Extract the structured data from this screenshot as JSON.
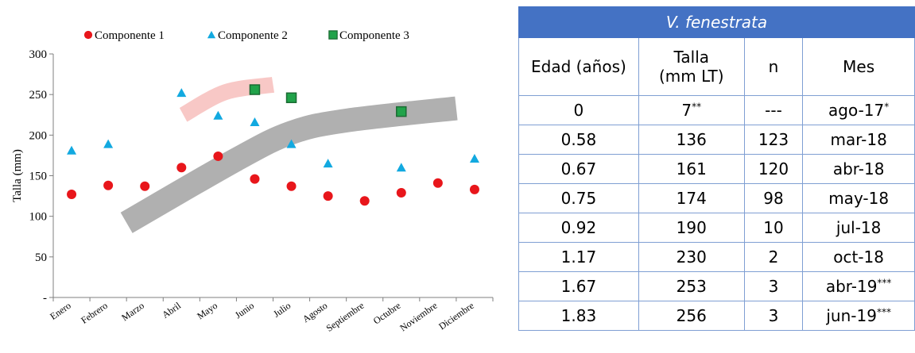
{
  "chart_data": {
    "type": "scatter",
    "xlabel": "",
    "ylabel": "Talla (mm)",
    "ylim": [
      0,
      300
    ],
    "yticks": [
      {
        "v": 0,
        "label": "-"
      },
      {
        "v": 50,
        "label": "50"
      },
      {
        "v": 100,
        "label": "100"
      },
      {
        "v": 150,
        "label": "150"
      },
      {
        "v": 200,
        "label": "200"
      },
      {
        "v": 250,
        "label": "250"
      },
      {
        "v": 300,
        "label": "300"
      }
    ],
    "categories": [
      "Enero",
      "Febrero",
      "Marzo",
      "Abril",
      "Mayo",
      "Junio",
      "Julio",
      "Agosto",
      "Septiembre",
      "Octubre",
      "Noviembre",
      "Diciembre"
    ],
    "legend_position": "top",
    "series": [
      {
        "name": "Componente 1",
        "marker": "circle",
        "color": "#e8161b",
        "values": [
          127,
          138,
          137,
          160,
          174,
          146,
          137,
          125,
          119,
          129,
          141,
          133
        ]
      },
      {
        "name": "Componente 2",
        "marker": "triangle",
        "color": "#12a9e0",
        "values": [
          181,
          189,
          null,
          252,
          224,
          216,
          189,
          165,
          null,
          160,
          null,
          171
        ]
      },
      {
        "name": "Componente 3",
        "marker": "square",
        "color": "#21a34a",
        "values": [
          null,
          null,
          null,
          null,
          null,
          256,
          246,
          null,
          null,
          229,
          null,
          null
        ]
      }
    ],
    "bands": [
      {
        "color": "#b0b0b0",
        "points": [
          [
            1.5,
            92
          ],
          [
            4.5,
            170
          ],
          [
            6,
            203
          ],
          [
            7.5,
            218
          ],
          [
            10.5,
            233
          ]
        ]
      },
      {
        "color": "#f8c8c6",
        "points": [
          [
            3.05,
            225
          ],
          [
            4.2,
            253
          ],
          [
            5.5,
            262
          ]
        ]
      }
    ]
  },
  "table": {
    "title": "V. fenestrata",
    "headers": [
      "Edad (años)",
      "Talla (mm LT)",
      "n",
      "Mes"
    ],
    "rows": [
      {
        "edad": "0",
        "talla": "7",
        "talla_sup": "**",
        "n": "---",
        "mes": "ago-17",
        "mes_sup": "*"
      },
      {
        "edad": "0.58",
        "talla": "136",
        "talla_sup": "",
        "n": "123",
        "mes": "mar-18",
        "mes_sup": ""
      },
      {
        "edad": "0.67",
        "talla": "161",
        "talla_sup": "",
        "n": "120",
        "mes": "abr-18",
        "mes_sup": ""
      },
      {
        "edad": "0.75",
        "talla": "174",
        "talla_sup": "",
        "n": "98",
        "mes": "may-18",
        "mes_sup": ""
      },
      {
        "edad": "0.92",
        "talla": "190",
        "talla_sup": "",
        "n": "10",
        "mes": "jul-18",
        "mes_sup": ""
      },
      {
        "edad": "1.17",
        "talla": "230",
        "talla_sup": "",
        "n": "2",
        "mes": "oct-18",
        "mes_sup": ""
      },
      {
        "edad": "1.67",
        "talla": "253",
        "talla_sup": "",
        "n": "3",
        "mes": "abr-19",
        "mes_sup": "***"
      },
      {
        "edad": "1.83",
        "talla": "256",
        "talla_sup": "",
        "n": "3",
        "mes": "jun-19",
        "mes_sup": "***"
      }
    ]
  }
}
